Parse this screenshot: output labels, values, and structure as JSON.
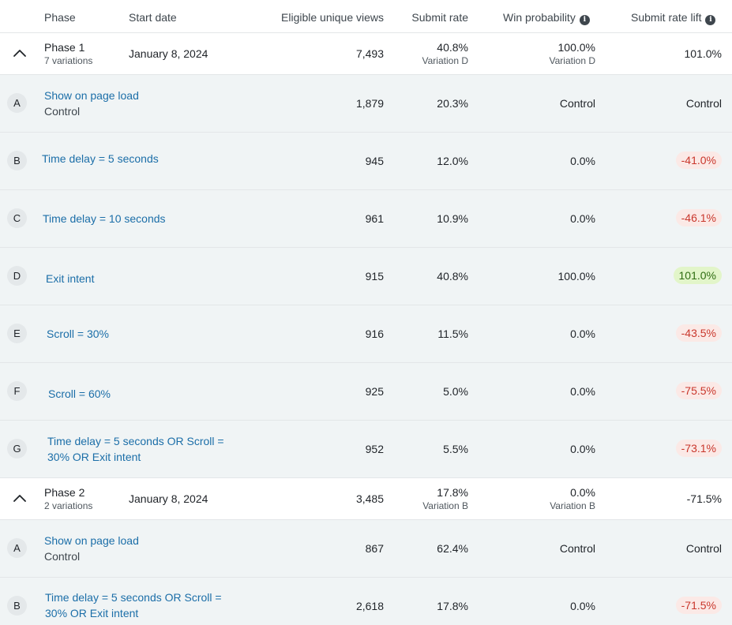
{
  "header": {
    "phase": "Phase",
    "start_date": "Start date",
    "views": "Eligible unique views",
    "submit_rate": "Submit rate",
    "win_probability": "Win probability",
    "submit_rate_lift": "Submit rate lift",
    "info_glyph": "i"
  },
  "phases": [
    {
      "name": "Phase 1",
      "variations_count": "7 variations",
      "start_date": "January 8, 2024",
      "views": "7,493",
      "submit_rate": "40.8%",
      "submit_rate_variation": "Variation D",
      "win_probability": "100.0%",
      "win_probability_variation": "Variation D",
      "lift": "101.0%",
      "variations": [
        {
          "letter": "A",
          "name": "Show on page load",
          "sublabel": "Control",
          "views": "1,879",
          "submit_rate": "20.3%",
          "win_probability": "Control",
          "lift": "Control",
          "lift_tone": "plain"
        },
        {
          "letter": "B",
          "name": "Time delay = 5 seconds",
          "views": "945",
          "submit_rate": "12.0%",
          "win_probability": "0.0%",
          "lift": "-41.0%",
          "lift_tone": "negative"
        },
        {
          "letter": "C",
          "name": "Time delay = 10 seconds",
          "views": "961",
          "submit_rate": "10.9%",
          "win_probability": "0.0%",
          "lift": "-46.1%",
          "lift_tone": "negative"
        },
        {
          "letter": "D",
          "name": "Exit intent",
          "views": "915",
          "submit_rate": "40.8%",
          "win_probability": "100.0%",
          "lift": "101.0%",
          "lift_tone": "positive"
        },
        {
          "letter": "E",
          "name": "Scroll = 30%",
          "views": "916",
          "submit_rate": "11.5%",
          "win_probability": "0.0%",
          "lift": "-43.5%",
          "lift_tone": "negative"
        },
        {
          "letter": "F",
          "name": "Scroll = 60%",
          "views": "925",
          "submit_rate": "5.0%",
          "win_probability": "0.0%",
          "lift": "-75.5%",
          "lift_tone": "negative"
        },
        {
          "letter": "G",
          "name_line1": "Time delay = 5 seconds OR Scroll =",
          "name_line2": "30% OR Exit intent",
          "views": "952",
          "submit_rate": "5.5%",
          "win_probability": "0.0%",
          "lift": "-73.1%",
          "lift_tone": "negative"
        }
      ]
    },
    {
      "name": "Phase 2",
      "variations_count": "2 variations",
      "start_date": "January 8, 2024",
      "views": "3,485",
      "submit_rate": "17.8%",
      "submit_rate_variation": "Variation B",
      "win_probability": "0.0%",
      "win_probability_variation": "Variation B",
      "lift": "-71.5%",
      "variations": [
        {
          "letter": "A",
          "name": "Show on page load",
          "sublabel": "Control",
          "views": "867",
          "submit_rate": "62.4%",
          "win_probability": "Control",
          "lift": "Control",
          "lift_tone": "plain"
        },
        {
          "letter": "B",
          "name_line1": "Time delay = 5 seconds OR Scroll =",
          "name_line2": "30% OR Exit intent",
          "views": "2,618",
          "submit_rate": "17.8%",
          "win_probability": "0.0%",
          "lift": "-71.5%",
          "lift_tone": "negative"
        }
      ]
    }
  ],
  "colors": {
    "link": "#1b6ea8",
    "row_alt_bg": "#f0f4f5",
    "negative_lift_bg": "#fbe9e6",
    "negative_lift_text": "#c9372c",
    "positive_lift_bg": "#e2f5c9",
    "positive_lift_text": "#2f6d12"
  },
  "icons": {
    "collapse": "chevron-up-icon",
    "info": "info-icon"
  }
}
